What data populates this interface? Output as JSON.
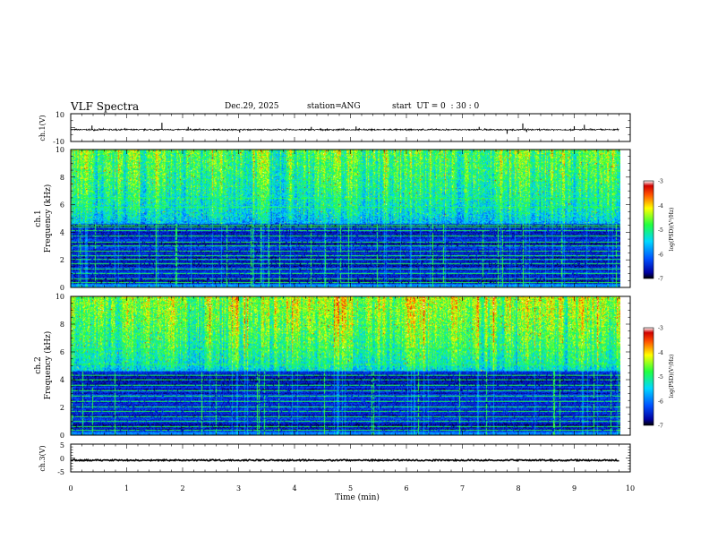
{
  "header": {
    "title": "VLF Spectra",
    "date": "Dec.29, 2025",
    "station_label": "station=",
    "station": "ANG",
    "start_label": "start  UT =",
    "start_time": "0  : 30 : 0"
  },
  "chart_data": [
    {
      "type": "line",
      "panel": "ch1-waveform",
      "ylabel": "ch.1(V)",
      "ylim": [
        -10,
        10
      ],
      "y_ticks": [
        "10",
        "-10"
      ],
      "xlim": [
        0,
        10
      ],
      "data_end_min": 9.8,
      "baseline_v": -1.5,
      "noise_v": 0.4,
      "spikes": [
        {
          "x": 0.38,
          "y": 1.5
        },
        {
          "x": 1.63,
          "y": 3.5
        },
        {
          "x": 2.1,
          "y": 0.5
        },
        {
          "x": 3.02,
          "y": -3.5
        },
        {
          "x": 4.3,
          "y": 0.5
        },
        {
          "x": 5.1,
          "y": 0.8
        },
        {
          "x": 7.3,
          "y": 0.5
        },
        {
          "x": 7.8,
          "y": -4.5
        },
        {
          "x": 8.08,
          "y": 3.0
        },
        {
          "x": 8.15,
          "y": -3.2
        },
        {
          "x": 9.0,
          "y": 1.0
        },
        {
          "x": 9.18,
          "y": 2.0
        }
      ]
    },
    {
      "type": "heatmap",
      "panel": "ch1-spectrogram",
      "ylabel_line1": "ch.1",
      "ylabel_line2": "Frequency  (kHz)",
      "ylim": [
        0,
        10
      ],
      "y_ticks": [
        "0",
        "2",
        "4",
        "6",
        "8",
        "10"
      ],
      "xlim": [
        0,
        10
      ],
      "colorbar": {
        "label": "log(PSD)(V²/Hz)",
        "range": [
          -7,
          -3
        ],
        "ticks": [
          "-3",
          "-4",
          "-5",
          "-6",
          "-7"
        ]
      },
      "hf_intensity": 0.62,
      "lines_khz": [
        0.3,
        0.6,
        1.0,
        1.3,
        1.7,
        2.0,
        2.3,
        2.6,
        3.0,
        3.3,
        3.7,
        4.1,
        4.4,
        4.5,
        5.8,
        6.5
      ]
    },
    {
      "type": "heatmap",
      "panel": "ch2-spectrogram",
      "ylabel_line1": "ch.2",
      "ylabel_line2": "Frequency  (kHz)",
      "ylim": [
        0,
        10
      ],
      "y_ticks": [
        "0",
        "2",
        "4",
        "6",
        "8",
        "10"
      ],
      "xlim": [
        0,
        10
      ],
      "colorbar": {
        "label": "log(PSD)(V²/Hz)",
        "range": [
          -7,
          -3
        ],
        "ticks": [
          "-3",
          "-4",
          "-5",
          "-6",
          "-7"
        ]
      },
      "hf_intensity": 0.72,
      "lines_khz": [
        0.3,
        0.6,
        1.0,
        1.3,
        1.7,
        2.0,
        2.4,
        2.8,
        3.2,
        3.6,
        4.0,
        4.3,
        5.1,
        6.2
      ]
    },
    {
      "type": "line",
      "panel": "ch3-waveform",
      "ylabel": "ch.3(V)",
      "ylim": [
        -5,
        5
      ],
      "y_ticks": [
        "5",
        "0",
        "-5"
      ],
      "xlim": [
        0,
        10
      ],
      "data_end_min": 9.8,
      "baseline_v": -0.8,
      "noise_v": 0.25,
      "xlabel": "Time  (min)",
      "x_ticks": [
        "0",
        "1",
        "2",
        "3",
        "4",
        "5",
        "6",
        "7",
        "8",
        "9",
        "10"
      ]
    }
  ]
}
